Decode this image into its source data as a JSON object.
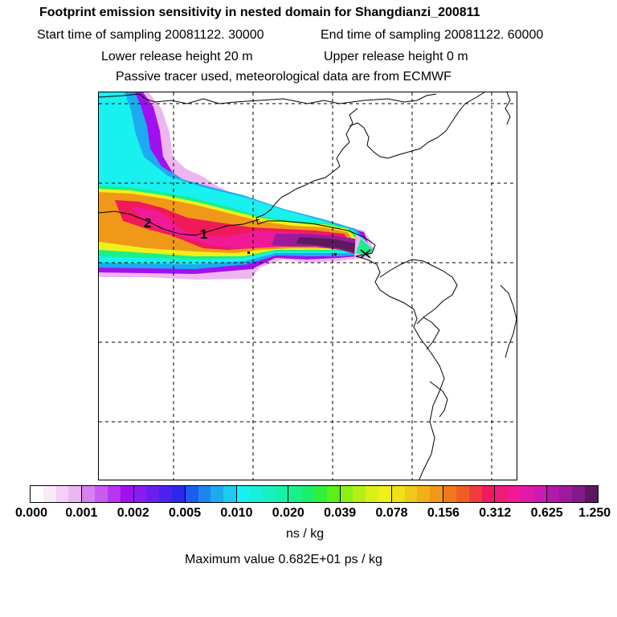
{
  "title": "Footprint emission sensitivity in nested domain for Shangdianzi_200811",
  "start_time": "Start time of sampling 20081122. 30000",
  "end_time": "End time of sampling 20081122. 60000",
  "lower_height": "Lower release height   20 m",
  "upper_height": "Upper release height    0 m",
  "tracer_note": "Passive tracer used, meteorological data are from ECMWF",
  "map": {
    "labels": [
      "2",
      "1"
    ]
  },
  "colorbar": {
    "ticks": [
      "0.000",
      "0.001",
      "0.002",
      "0.005",
      "0.010",
      "0.020",
      "0.039",
      "0.078",
      "0.156",
      "0.312",
      "0.625",
      "1.250"
    ],
    "unit": "ns / kg",
    "colors": [
      [
        "#ffffff",
        "#fbe8fb",
        "#f5cff5",
        "#eeb6f0"
      ],
      [
        "#d97ff0",
        "#c95af0",
        "#b636f0",
        "#a010f0"
      ],
      [
        "#8a1cf0",
        "#6a1ff0",
        "#4a22f0",
        "#2a28f0"
      ],
      [
        "#1c5df0",
        "#1c86f0",
        "#1caaf0",
        "#1cccf0"
      ],
      [
        "#19f0f0",
        "#19f0d8",
        "#19f0c0",
        "#19f0a8"
      ],
      [
        "#19f08c",
        "#19f06a",
        "#30f03c",
        "#5af018"
      ],
      [
        "#8cf018",
        "#b4f018",
        "#d8f018",
        "#f0f018"
      ],
      [
        "#f0e018",
        "#f0c818",
        "#f0b018",
        "#f09818"
      ],
      [
        "#f07a18",
        "#f05c28",
        "#f03c3c",
        "#f01a5a"
      ],
      [
        "#f01a78",
        "#f01a96",
        "#e01aa8",
        "#cc1ab0"
      ],
      [
        "#b01aa8",
        "#9c1a9c",
        "#841a8a",
        "#5c1a5c"
      ]
    ]
  },
  "max_value": "Maximum value  0.682E+01 ps / kg"
}
